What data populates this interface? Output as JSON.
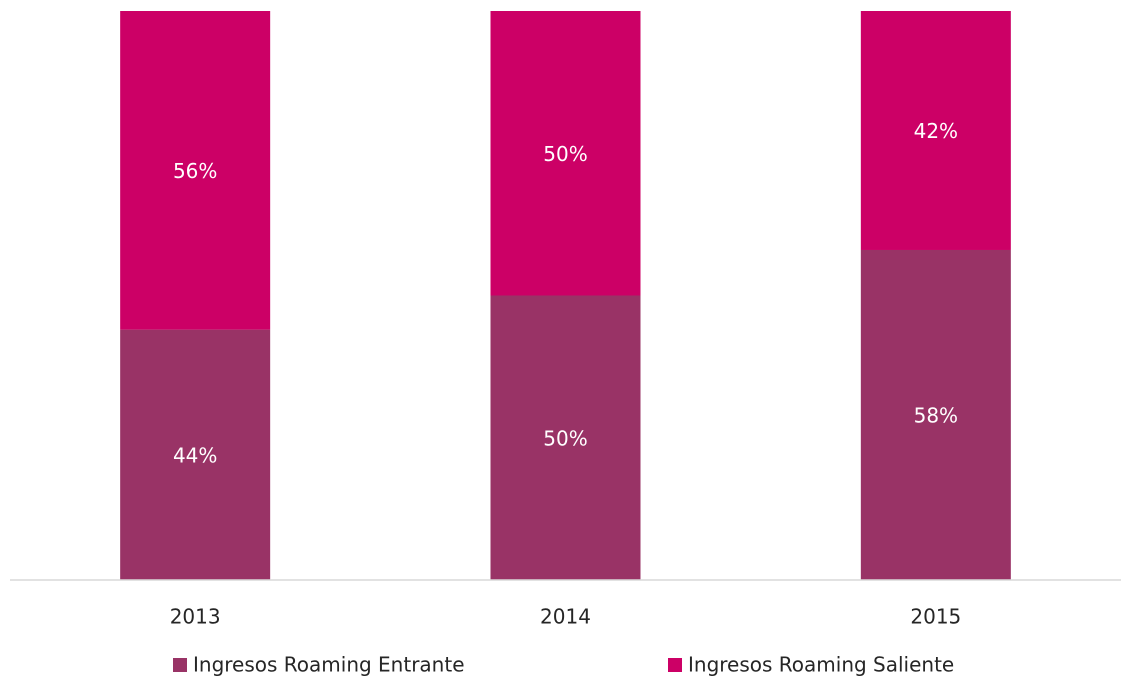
{
  "chart_data": {
    "type": "bar",
    "stacked": true,
    "categories": [
      "2013",
      "2014",
      "2015"
    ],
    "series": [
      {
        "name": "Ingresos Roaming Entrante",
        "color": "#993366",
        "values": [
          44,
          50,
          58
        ],
        "value_labels": [
          "44%",
          "50%",
          "58%"
        ]
      },
      {
        "name": "Ingresos Roaming Saliente",
        "color": "#cc0066",
        "values": [
          56,
          50,
          42
        ],
        "value_labels": [
          "56%",
          "50%",
          "42%"
        ]
      }
    ],
    "ylim": [
      0,
      100
    ],
    "legend": "bottom"
  }
}
